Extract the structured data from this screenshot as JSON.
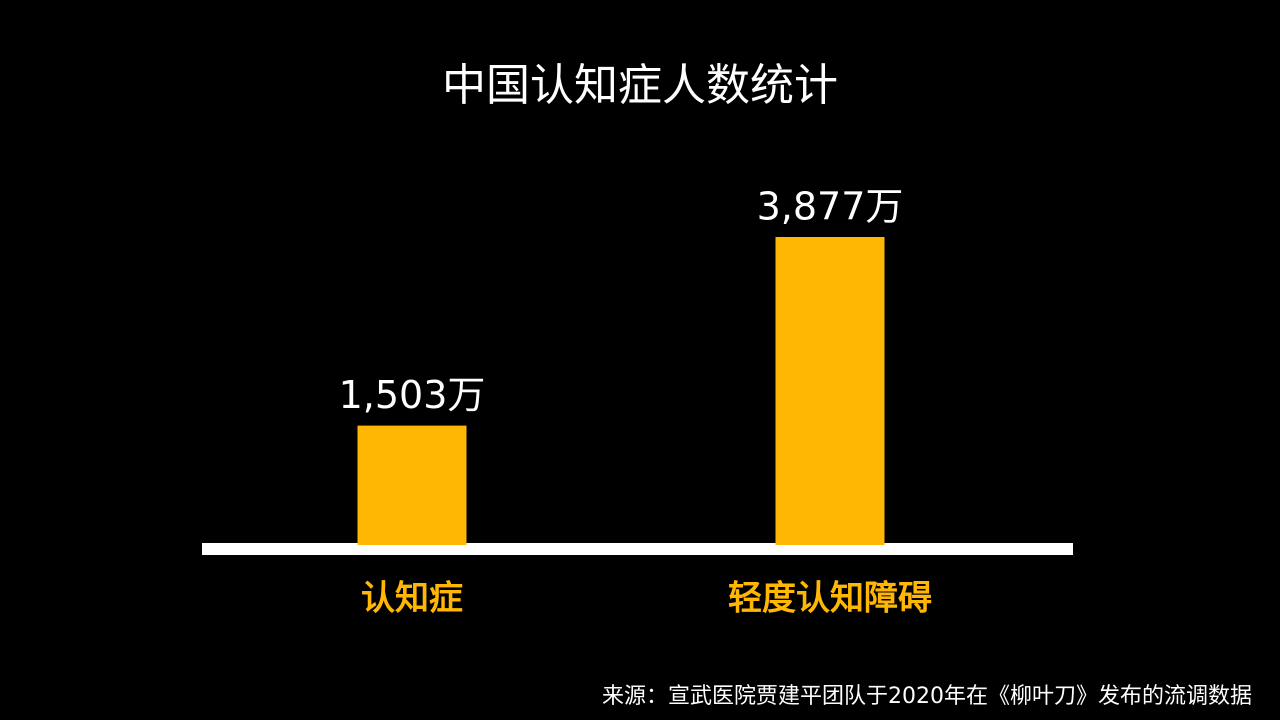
{
  "chart_data": {
    "type": "bar",
    "title": "中国认知症人数统计",
    "categories": [
      "认知症",
      "轻度认知障碍"
    ],
    "values": [
      1503,
      3877
    ],
    "value_labels": [
      "1,503万",
      "3,877万"
    ],
    "color": "#ffb703",
    "source": "来源：宣武医院贾建平团队于2020年在《柳叶刀》发布的流调数据"
  }
}
